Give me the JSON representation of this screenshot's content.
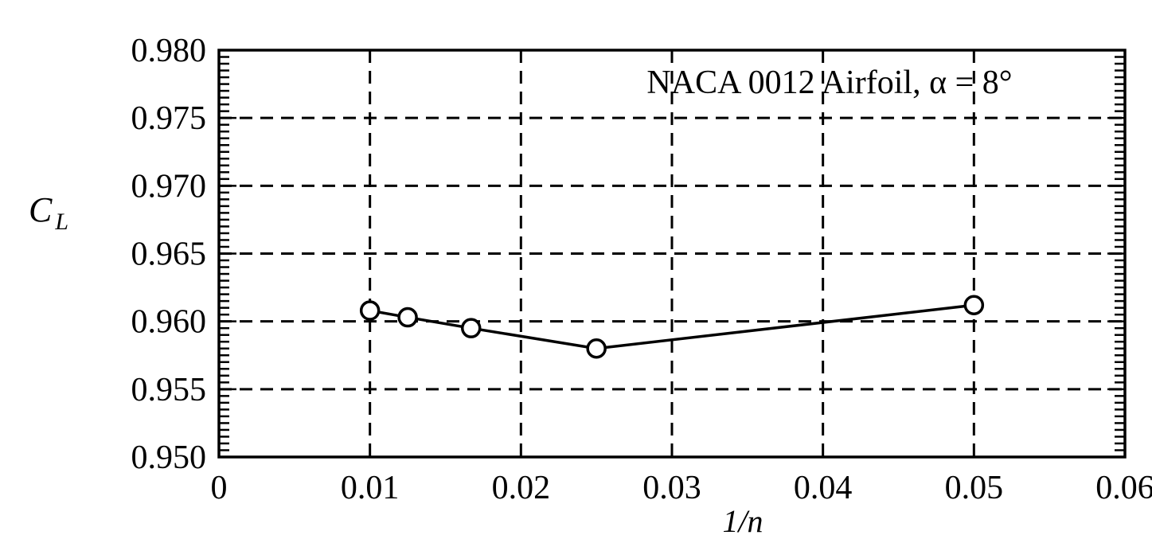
{
  "chart_data": {
    "type": "line",
    "annotation": "NACA 0012 Airfoil, α = 8°",
    "xlabel": "1/n",
    "ylabel": "C",
    "ylabel_subscript": "L",
    "xlim": [
      0,
      0.06
    ],
    "ylim": [
      0.95,
      0.98
    ],
    "xticks": [
      "0",
      "0.01",
      "0.02",
      "0.03",
      "0.04",
      "0.05",
      "0.06"
    ],
    "yticks": [
      "0.950",
      "0.955",
      "0.960",
      "0.965",
      "0.970",
      "0.975",
      "0.980"
    ],
    "grid": true,
    "series": [
      {
        "x": [
          0.01,
          0.0125,
          0.0167,
          0.025,
          0.05
        ],
        "y": [
          0.9608,
          0.9603,
          0.9595,
          0.958,
          0.9612
        ],
        "marker": "open-circle",
        "color": "#000000"
      }
    ]
  }
}
